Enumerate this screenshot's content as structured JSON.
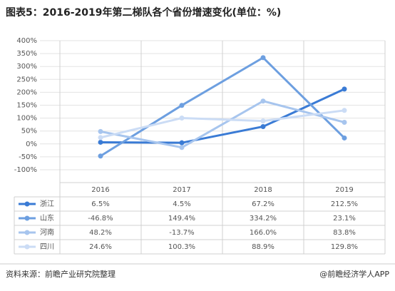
{
  "chart_data": {
    "type": "line",
    "title": "图表5：2016-2019年第二梯队各个省份增速变化(单位：%)",
    "categories": [
      "2016",
      "2017",
      "2018",
      "2019"
    ],
    "series": [
      {
        "name": "浙江",
        "color": "#3a7bd5",
        "values": [
          6.5,
          4.5,
          67.2,
          212.5
        ],
        "value_labels": [
          "6.5%",
          "4.5%",
          "67.2%",
          "212.5%"
        ]
      },
      {
        "name": "山东",
        "color": "#6d9fe0",
        "values": [
          -46.8,
          149.4,
          334.2,
          23.1
        ],
        "value_labels": [
          "-46.8%",
          "149.4%",
          "334.2%",
          "23.1%"
        ]
      },
      {
        "name": "河南",
        "color": "#a7c5ee",
        "values": [
          48.2,
          -13.7,
          166.0,
          83.8
        ],
        "value_labels": [
          "48.2%",
          "-13.7%",
          "166.0%",
          "83.8%"
        ]
      },
      {
        "name": "四川",
        "color": "#cbdcf5",
        "values": [
          24.6,
          100.3,
          88.9,
          129.8
        ],
        "value_labels": [
          "24.6%",
          "100.3%",
          "88.9%",
          "129.8%"
        ]
      }
    ],
    "ylim": [
      -100,
      400
    ],
    "yticks": [
      {
        "value": -100,
        "label": "-100%"
      },
      {
        "value": -50,
        "label": "-50%"
      },
      {
        "value": 0,
        "label": "0%"
      },
      {
        "value": 50,
        "label": "50%"
      },
      {
        "value": 100,
        "label": "100%"
      },
      {
        "value": 150,
        "label": "150%"
      },
      {
        "value": 200,
        "label": "200%"
      },
      {
        "value": 250,
        "label": "250%"
      },
      {
        "value": 300,
        "label": "300%"
      },
      {
        "value": 350,
        "label": "350%"
      },
      {
        "value": 400,
        "label": "400%"
      }
    ],
    "grid": true
  },
  "source": "资料来源：前瞻产业研究院整理",
  "brand": "@前瞻经济学人APP"
}
